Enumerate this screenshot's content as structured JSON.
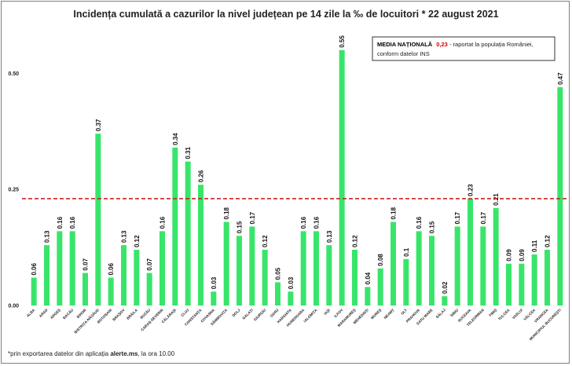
{
  "chart_data": {
    "type": "bar",
    "title": "Incidența cumulată a cazurilor la nivel județean pe 14 zile la ‰ de locuitori *  22 august 2021",
    "categories": [
      "ALBA",
      "ARAD",
      "ARGEȘ",
      "BACĂU",
      "BIHOR",
      "BISTRIȚA-NĂSĂUD",
      "BOTOȘANI",
      "BRAȘOV",
      "BRĂILA",
      "BUZĂU",
      "CARAȘ-SEVERIN",
      "CĂLĂRAȘI",
      "CLUJ",
      "CONSTANȚA",
      "COVASNA",
      "DÂMBOVIȚA",
      "DOLJ",
      "GALAȚI",
      "GIURGIU",
      "GORJ",
      "HARGHITA",
      "HUNEDOARA",
      "IALOMIȚA",
      "IAȘI",
      "ILFOV",
      "MARAMUREȘ",
      "MEHEDINȚI",
      "MUREȘ",
      "NEAMȚ",
      "OLT",
      "PRAHOVA",
      "SATU MARE",
      "SĂLAJ",
      "SIBIU",
      "SUCEAVA",
      "TELEORMAN",
      "TIMIȘ",
      "TULCEA",
      "VASLUI",
      "VÂLCEA",
      "VRANCEA",
      "MUNICIPIUL BUCUREȘTI"
    ],
    "values": [
      0.06,
      0.13,
      0.16,
      0.16,
      0.07,
      0.37,
      0.06,
      0.13,
      0.12,
      0.07,
      0.16,
      0.34,
      0.31,
      0.26,
      0.03,
      0.18,
      0.15,
      0.17,
      0.12,
      0.05,
      0.03,
      0.16,
      0.16,
      0.13,
      0.55,
      0.12,
      0.04,
      0.08,
      0.18,
      0.1,
      0.16,
      0.15,
      0.02,
      0.17,
      0.23,
      0.17,
      0.21,
      0.09,
      0.09,
      0.11,
      0.12,
      0.47
    ],
    "value_labels": [
      "0.06",
      "0.13",
      "0.16",
      "0.16",
      "0.07",
      "0.37",
      "0.06",
      "0.13",
      "0.12",
      "0.07",
      "0.16",
      "0.34",
      "0.31",
      "0.26",
      "0.03",
      "0.18",
      "0.15",
      "0.17",
      "0.12",
      "0.05",
      "0.03",
      "0.16",
      "0.16",
      "0.13",
      "0.55",
      "0.12",
      "0.04",
      "0.08",
      "0.18",
      "0.1",
      "0.16",
      "0.15",
      "0.02",
      "0.17",
      "0.23",
      "0.17",
      "0.21",
      "0.09",
      "0.09",
      "0.11",
      "0.12",
      "0.47"
    ],
    "ylim": [
      0,
      0.58
    ],
    "yticks": [
      0,
      0.25,
      0.5
    ],
    "ytick_labels": [
      "0.00",
      "0.25",
      "0.50"
    ],
    "reference_line": {
      "value": 0.23
    },
    "colors": {
      "bar": "#38e56a",
      "reference": "#cc2222"
    }
  },
  "legend": {
    "bold_text": "MEDIA NAȚIONALĂ",
    "value": "0,23",
    "rest_line1": " - raportat la populația României,",
    "line2": "conform datelor INS"
  },
  "footnote": {
    "prefix": "*prin exportarea datelor din aplicația ",
    "bold": "alerte.ms",
    "suffix": ", la ora 10.00"
  }
}
